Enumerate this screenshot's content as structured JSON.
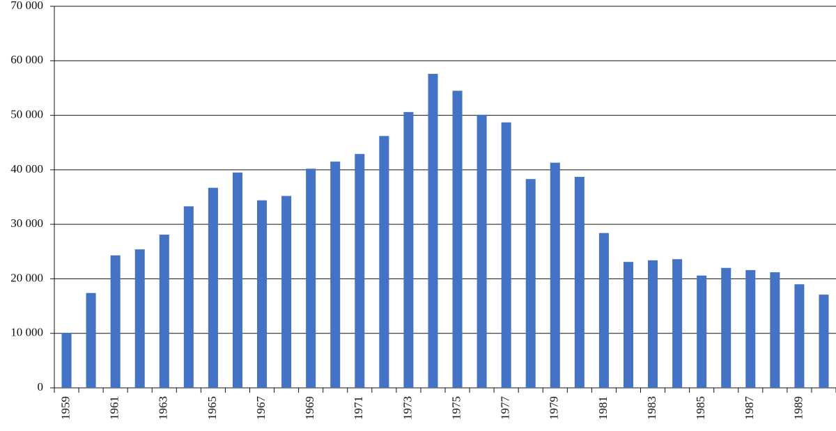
{
  "chart_data": {
    "type": "bar",
    "categories": [
      "1959",
      null,
      "1961",
      null,
      "1963",
      null,
      "1965",
      null,
      "1967",
      null,
      "1969",
      null,
      "1971",
      null,
      "1973",
      null,
      "1975",
      null,
      "1977",
      null,
      "1979",
      null,
      "1981",
      null,
      "1983",
      null,
      "1985",
      null,
      "1987",
      null,
      "1989",
      null
    ],
    "values": [
      10100,
      17400,
      24300,
      25400,
      28100,
      33300,
      36700,
      39500,
      34400,
      35200,
      40200,
      41500,
      42900,
      46200,
      50600,
      57600,
      54500,
      50100,
      48700,
      38300,
      41300,
      38700,
      28400,
      23100,
      23400,
      23600,
      20600,
      22000,
      21600,
      21200,
      19000,
      17100
    ],
    "color": "#4472c4",
    "ylim": [
      0,
      70000
    ],
    "yticks": [
      0,
      {
        "value": 10000,
        "label": "10 000"
      },
      {
        "value": 20000,
        "label": "20 000"
      },
      {
        "value": 30000,
        "label": "30 000"
      },
      {
        "value": 40000,
        "label": "40 000"
      },
      {
        "value": 50000,
        "label": "50 000"
      },
      {
        "value": 60000,
        "label": "60 000"
      },
      {
        "value": 70000,
        "label": "70 000"
      }
    ],
    "grid": true
  }
}
